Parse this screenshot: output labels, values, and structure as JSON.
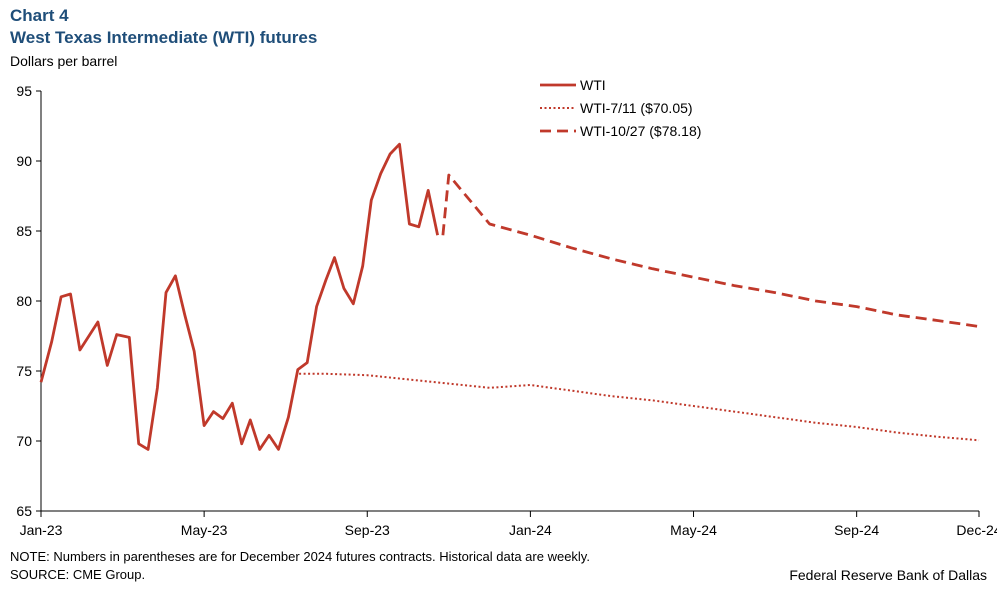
{
  "header": {
    "chart_number": "Chart 4",
    "title": "West Texas Intermediate (WTI) futures",
    "y_unit": "Dollars per barrel"
  },
  "footer": {
    "note": "NOTE: Numbers in parentheses are for December 2024 futures contracts. Historical data are weekly.",
    "source": "SOURCE: CME Group.",
    "credit": "Federal Reserve Bank of Dallas"
  },
  "colors": {
    "series": "#c0392b",
    "axis": "#000000"
  },
  "chart_data": {
    "type": "line",
    "title": "West Texas Intermediate (WTI) futures",
    "ylabel": "Dollars per barrel",
    "xlabel": "",
    "ylim": [
      65,
      95
    ],
    "yticks": [
      65,
      70,
      75,
      80,
      85,
      90,
      95
    ],
    "xlim": [
      "2023-01",
      "2024-12"
    ],
    "xticks": [
      {
        "label": "Jan-23",
        "date": "2023-01"
      },
      {
        "label": "May-23",
        "date": "2023-05"
      },
      {
        "label": "Sep-23",
        "date": "2023-09"
      },
      {
        "label": "Jan-24",
        "date": "2024-01"
      },
      {
        "label": "May-24",
        "date": "2024-05"
      },
      {
        "label": "Sep-24",
        "date": "2024-09"
      },
      {
        "label": "Dec-24",
        "date": "2024-12"
      }
    ],
    "grid": false,
    "legend_position": "top-right",
    "series": [
      {
        "name": "WTI",
        "style": "solid",
        "points": [
          [
            "2023-01-01",
            74.2
          ],
          [
            "2023-01-09",
            77.1
          ],
          [
            "2023-01-16",
            80.3
          ],
          [
            "2023-01-23",
            80.5
          ],
          [
            "2023-01-30",
            76.5
          ],
          [
            "2023-02-13",
            78.5
          ],
          [
            "2023-02-20",
            75.4
          ],
          [
            "2023-02-27",
            77.6
          ],
          [
            "2023-03-06",
            77.4
          ],
          [
            "2023-03-13",
            69.8
          ],
          [
            "2023-03-20",
            69.4
          ],
          [
            "2023-03-27",
            73.8
          ],
          [
            "2023-04-03",
            80.6
          ],
          [
            "2023-04-10",
            81.8
          ],
          [
            "2023-04-17",
            79.0
          ],
          [
            "2023-04-24",
            76.4
          ],
          [
            "2023-05-01",
            71.1
          ],
          [
            "2023-05-08",
            72.1
          ],
          [
            "2023-05-15",
            71.6
          ],
          [
            "2023-05-22",
            72.7
          ],
          [
            "2023-05-29",
            69.8
          ],
          [
            "2023-06-05",
            71.5
          ],
          [
            "2023-06-12",
            69.4
          ],
          [
            "2023-06-19",
            70.4
          ],
          [
            "2023-06-26",
            69.4
          ],
          [
            "2023-07-03",
            71.7
          ],
          [
            "2023-07-10",
            75.1
          ],
          [
            "2023-07-17",
            75.6
          ],
          [
            "2023-07-24",
            79.6
          ],
          [
            "2023-07-31",
            81.5
          ],
          [
            "2023-08-07",
            83.1
          ],
          [
            "2023-08-14",
            80.9
          ],
          [
            "2023-08-21",
            79.8
          ],
          [
            "2023-08-28",
            82.5
          ],
          [
            "2023-09-04",
            87.2
          ],
          [
            "2023-09-11",
            89.1
          ],
          [
            "2023-09-18",
            90.5
          ],
          [
            "2023-09-25",
            91.2
          ],
          [
            "2023-10-02",
            85.5
          ],
          [
            "2023-10-09",
            85.3
          ],
          [
            "2023-10-16",
            87.9
          ],
          [
            "2023-10-23",
            84.7
          ]
        ]
      },
      {
        "name": "WTI-7/11 ($70.05)",
        "style": "dotted",
        "points": [
          [
            "2023-07-11",
            74.8
          ],
          [
            "2023-08",
            74.8
          ],
          [
            "2023-09",
            74.7
          ],
          [
            "2023-10",
            74.4
          ],
          [
            "2023-11",
            74.1
          ],
          [
            "2023-12",
            73.8
          ],
          [
            "2024-01",
            74.0
          ],
          [
            "2024-02",
            73.6
          ],
          [
            "2024-03",
            73.2
          ],
          [
            "2024-04",
            72.9
          ],
          [
            "2024-05",
            72.5
          ],
          [
            "2024-06",
            72.1
          ],
          [
            "2024-07",
            71.7
          ],
          [
            "2024-08",
            71.3
          ],
          [
            "2024-09",
            71.0
          ],
          [
            "2024-10",
            70.6
          ],
          [
            "2024-11",
            70.3
          ],
          [
            "2024-12",
            70.05
          ]
        ]
      },
      {
        "name": "WTI-10/27 ($78.18)",
        "style": "dashed",
        "points": [
          [
            "2023-10-27",
            84.7
          ],
          [
            "2023-11",
            89.0
          ],
          [
            "2023-12",
            85.5
          ],
          [
            "2024-01",
            84.7
          ],
          [
            "2024-02",
            83.8
          ],
          [
            "2024-03",
            83.0
          ],
          [
            "2024-04",
            82.3
          ],
          [
            "2024-05",
            81.7
          ],
          [
            "2024-06",
            81.1
          ],
          [
            "2024-07",
            80.6
          ],
          [
            "2024-08",
            80.0
          ],
          [
            "2024-09",
            79.6
          ],
          [
            "2024-10",
            79.0
          ],
          [
            "2024-11",
            78.6
          ],
          [
            "2024-12",
            78.18
          ]
        ]
      }
    ]
  }
}
